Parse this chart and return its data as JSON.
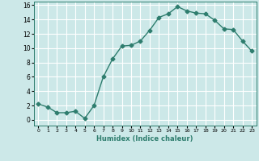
{
  "x": [
    0,
    1,
    2,
    3,
    4,
    5,
    6,
    7,
    8,
    9,
    10,
    11,
    12,
    13,
    14,
    15,
    16,
    17,
    18,
    19,
    20,
    21,
    22,
    23
  ],
  "y": [
    2.2,
    1.8,
    1.0,
    1.0,
    1.2,
    0.2,
    2.0,
    6.0,
    8.5,
    10.3,
    10.4,
    11.0,
    12.5,
    14.3,
    14.8,
    15.8,
    15.2,
    14.9,
    14.8,
    13.9,
    12.7,
    12.6,
    11.0,
    9.6
  ],
  "xlabel": "Humidex (Indice chaleur)",
  "xlim": [
    -0.5,
    23.5
  ],
  "ylim": [
    -0.8,
    16.5
  ],
  "yticks": [
    0,
    2,
    4,
    6,
    8,
    10,
    12,
    14,
    16
  ],
  "xticks": [
    0,
    1,
    2,
    3,
    4,
    5,
    6,
    7,
    8,
    9,
    10,
    11,
    12,
    13,
    14,
    15,
    16,
    17,
    18,
    19,
    20,
    21,
    22,
    23
  ],
  "line_color": "#2e7d6e",
  "marker": "D",
  "bg_color": "#cce8e8",
  "grid_color": "#ffffff",
  "marker_size": 2.5,
  "line_width": 1.0
}
